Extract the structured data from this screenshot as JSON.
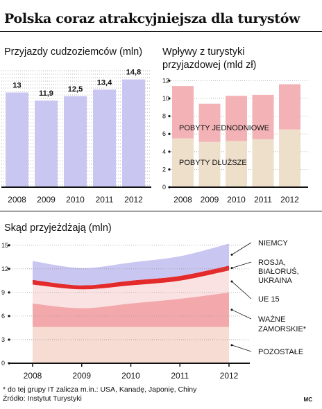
{
  "title": "Polska coraz atrakcyjniejsza dla turystów",
  "chart_data": [
    {
      "type": "bar",
      "title": "Przyjazdy cudzoziemców (mln)",
      "categories": [
        "2008",
        "2009",
        "2010",
        "2011",
        "2012"
      ],
      "values": [
        13,
        11.9,
        12.5,
        13.4,
        14.8
      ],
      "value_labels": [
        "13",
        "11,9",
        "12,5",
        "13,4",
        "14,8"
      ],
      "bar_color": "#c9c6f2",
      "ylim": [
        0,
        16
      ],
      "grid": true
    },
    {
      "type": "bar",
      "stacked": true,
      "title": "Wpływy z turystyki przyjazdowej (mld zł)",
      "categories": [
        "2008",
        "2009",
        "2010",
        "2011",
        "2012"
      ],
      "yticks": [
        0,
        2,
        4,
        6,
        8,
        10,
        12
      ],
      "ylim": [
        0,
        12
      ],
      "grid": true,
      "series": [
        {
          "name": "POBYTY DŁUŻSZE",
          "color": "#eedfcb",
          "values": [
            5.5,
            5.1,
            5.2,
            5.4,
            6.5
          ]
        },
        {
          "name": "POBYTY JEDNODNIOWE",
          "color": "#f3b3b6",
          "values": [
            5.9,
            4.3,
            5.1,
            5.0,
            5.1
          ]
        }
      ]
    },
    {
      "type": "area",
      "stacked": true,
      "title": "Skąd przyjeżdżają (mln)",
      "x": [
        2008,
        2009,
        2010,
        2011,
        2012
      ],
      "xticks": [
        "2008",
        "2009",
        "2010",
        "2011",
        "2012"
      ],
      "yticks": [
        0,
        3,
        6,
        9,
        12,
        15
      ],
      "ylim": [
        0,
        15
      ],
      "grid": true,
      "series": [
        {
          "name": "POZOSTAŁE",
          "color": "#f6dcd2",
          "values": [
            4.6,
            4.6,
            4.6,
            4.6,
            4.6
          ]
        },
        {
          "name": "WAŻNE ZAMORSKIE*",
          "color": "#f3a9ac",
          "values": [
            3.0,
            2.4,
            3.0,
            3.6,
            4.4
          ]
        },
        {
          "name": "UE 15",
          "color": "#fbe2e2",
          "values": [
            2.4,
            2.4,
            2.3,
            2.3,
            2.8
          ]
        },
        {
          "name": "ROSJA, BIAŁORUŚ, UKRAINA",
          "color": "#e32b2b",
          "values": [
            0.6,
            0.5,
            0.6,
            0.6,
            0.6
          ]
        },
        {
          "name": "NIEMCY",
          "color": "#c9c6f2",
          "values": [
            2.4,
            2.2,
            2.3,
            2.5,
            2.8
          ]
        }
      ]
    }
  ],
  "footnote": "* do tej grupy IT zalicza m.in.: USA, Kanadę, Japonię, Chiny",
  "source": "Źródło: Instytut Turystyki",
  "credit": "MC"
}
